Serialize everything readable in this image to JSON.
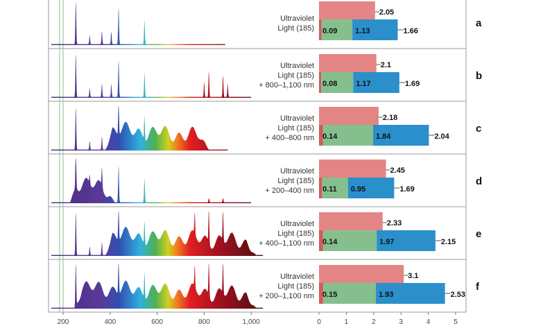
{
  "chart_data": [
    {
      "type": "line",
      "title": "",
      "xlabel": "",
      "ylabel": "",
      "xlim": [
        140,
        1100
      ],
      "xticks": [
        "200",
        "400",
        "600",
        "800",
        "1,000"
      ],
      "xtick_values": [
        200,
        400,
        600,
        800,
        1000
      ],
      "reference_lines_nm": [
        185,
        200
      ],
      "panels": [
        {
          "id": "a",
          "peaks_nm": [
            [
              254,
              1.0
            ],
            [
              313,
              0.2
            ],
            [
              365,
              0.3
            ],
            [
              405,
              0.3
            ],
            [
              436,
              0.85
            ],
            [
              546,
              0.55
            ]
          ],
          "continuum_nm": null,
          "range_nm": [
            150,
            890
          ]
        },
        {
          "id": "b",
          "peaks_nm": [
            [
              254,
              1.0
            ],
            [
              313,
              0.2
            ],
            [
              365,
              0.3
            ],
            [
              405,
              0.3
            ],
            [
              436,
              0.85
            ],
            [
              546,
              0.55
            ],
            [
              800,
              0.35
            ],
            [
              820,
              0.6
            ],
            [
              880,
              0.5
            ],
            [
              900,
              0.3
            ]
          ],
          "continuum_nm": null,
          "range_nm": [
            150,
            1000
          ]
        },
        {
          "id": "c",
          "peaks_nm": [
            [
              254,
              1.0
            ],
            [
              313,
              0.2
            ],
            [
              365,
              0.3
            ],
            [
              436,
              0.85
            ],
            [
              546,
              0.55
            ]
          ],
          "continuum_nm": [
            400,
            800
          ],
          "range_nm": [
            150,
            900
          ]
        },
        {
          "id": "d",
          "peaks_nm": [
            [
              254,
              1.0
            ],
            [
              313,
              0.2
            ],
            [
              365,
              0.45
            ],
            [
              436,
              0.85
            ],
            [
              546,
              0.55
            ],
            [
              820,
              0.1
            ],
            [
              880,
              0.1
            ]
          ],
          "continuum_nm": [
            250,
            400
          ],
          "range_nm": [
            150,
            1000
          ]
        },
        {
          "id": "e",
          "peaks_nm": [
            [
              254,
              1.0
            ],
            [
              313,
              0.2
            ],
            [
              365,
              0.3
            ],
            [
              436,
              0.85
            ],
            [
              546,
              0.55
            ],
            [
              760,
              0.5
            ],
            [
              820,
              0.8
            ],
            [
              880,
              0.7
            ]
          ],
          "continuum_nm": [
            400,
            1000
          ],
          "range_nm": [
            150,
            1050
          ]
        },
        {
          "id": "f",
          "peaks_nm": [
            [
              254,
              1.0
            ],
            [
              436,
              0.85
            ],
            [
              546,
              0.6
            ],
            [
              760,
              0.5
            ],
            [
              820,
              0.85
            ],
            [
              880,
              0.75
            ]
          ],
          "continuum_nm": [
            270,
            1000
          ],
          "range_nm": [
            150,
            1050
          ]
        }
      ]
    },
    {
      "type": "bar",
      "title": "",
      "xlabel": "",
      "ylabel": "",
      "xlim": [
        0,
        5
      ],
      "xticks": [
        "0",
        "1",
        "2",
        "3",
        "4",
        "5"
      ],
      "colors": {
        "top": "#e38585",
        "seg1": "#d45a5a",
        "seg2": "#86bf8e",
        "seg3": "#2b8fcc"
      },
      "rows": [
        {
          "panel": "a",
          "label": [
            "Ultraviolet",
            "Light (185)"
          ],
          "top": "2.05",
          "segments": [
            "0.09",
            "1.13",
            "1.66"
          ]
        },
        {
          "panel": "b",
          "label": [
            "Ultraviolet",
            "Light (185)",
            "+ 800–1,100 nm"
          ],
          "top": "2.1",
          "segments": [
            "0.08",
            "1.17",
            "1.69"
          ]
        },
        {
          "panel": "c",
          "label": [
            "Ultraviolet",
            "Light (185)",
            "+ 400–800 nm"
          ],
          "top": "2.18",
          "segments": [
            "0.14",
            "1.84",
            "2.04"
          ]
        },
        {
          "panel": "d",
          "label": [
            "Ultraviolet",
            "Light (185)",
            "+ 200–400 nm"
          ],
          "top": "2.45",
          "segments": [
            "0.11",
            "0.95",
            "1.69"
          ]
        },
        {
          "panel": "e",
          "label": [
            "Ultraviolet",
            "Light (185)",
            "+ 400–1,100 nm"
          ],
          "top": "2.33",
          "segments": [
            "0.14",
            "1.97",
            "2.15"
          ]
        },
        {
          "panel": "f",
          "label": [
            "Ultraviolet",
            "Light (185)",
            "+ 200–1,100 nm"
          ],
          "top": "3.1",
          "segments": [
            "0.15",
            "1.93",
            "2.53"
          ]
        }
      ]
    }
  ]
}
